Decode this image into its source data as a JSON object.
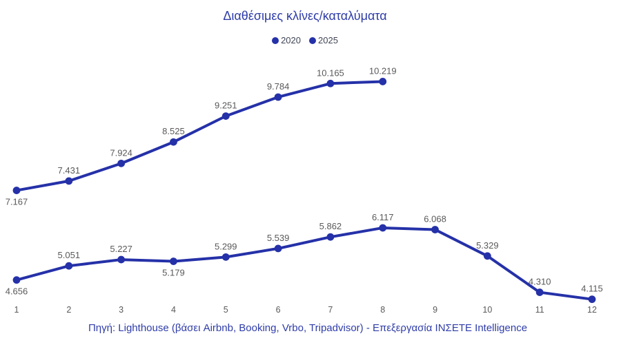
{
  "chart_data": {
    "type": "line",
    "title": "Διαθέσιμες κλίνες/καταλύματα",
    "x_tick_labels": [
      "1",
      "2",
      "3",
      "4",
      "5",
      "6",
      "7",
      "8",
      "9",
      "10",
      "11",
      "12"
    ],
    "ylim": [
      3800,
      11000
    ],
    "grid": false,
    "legend_position": "top-center",
    "series": [
      {
        "name": "2020",
        "color": "#2531a8",
        "values": [
          4656,
          5051,
          5227,
          5179,
          5299,
          5539,
          5862,
          6117,
          6068,
          5329,
          4310,
          4115
        ],
        "labels": [
          "4.656",
          "5.051",
          "5.227",
          "5.179",
          "5.299",
          "5.539",
          "5.862",
          "6.117",
          "6.068",
          "5.329",
          "4.310",
          "4.115"
        ],
        "label_positions": [
          "below",
          "above",
          "above",
          "below",
          "above",
          "above",
          "above",
          "above",
          "above",
          "above",
          "above",
          "above"
        ]
      },
      {
        "name": "2025",
        "color": "#2531a8",
        "values": [
          7167,
          7431,
          7924,
          8525,
          9251,
          9784,
          10165,
          10219
        ],
        "labels": [
          "7.167",
          "7.431",
          "7.924",
          "8.525",
          "9.251",
          "9.784",
          "10.165",
          "10.219"
        ],
        "label_positions": [
          "below",
          "above",
          "above",
          "above",
          "above",
          "above",
          "above",
          "above"
        ]
      }
    ],
    "colors": {
      "title_text": "#2e3ca8",
      "source_text": "#2e3ca8",
      "legend_text": "#3f4554",
      "data_label_text": "#595959",
      "axis_tick_text": "#595959",
      "line": "#2531a8"
    },
    "source": "Πηγή: Lighthouse (βάσει Airbnb, Booking, Vrbo, Tripadvisor) - Επεξεργασία ΙΝΣΕΤΕ Intelligence"
  }
}
